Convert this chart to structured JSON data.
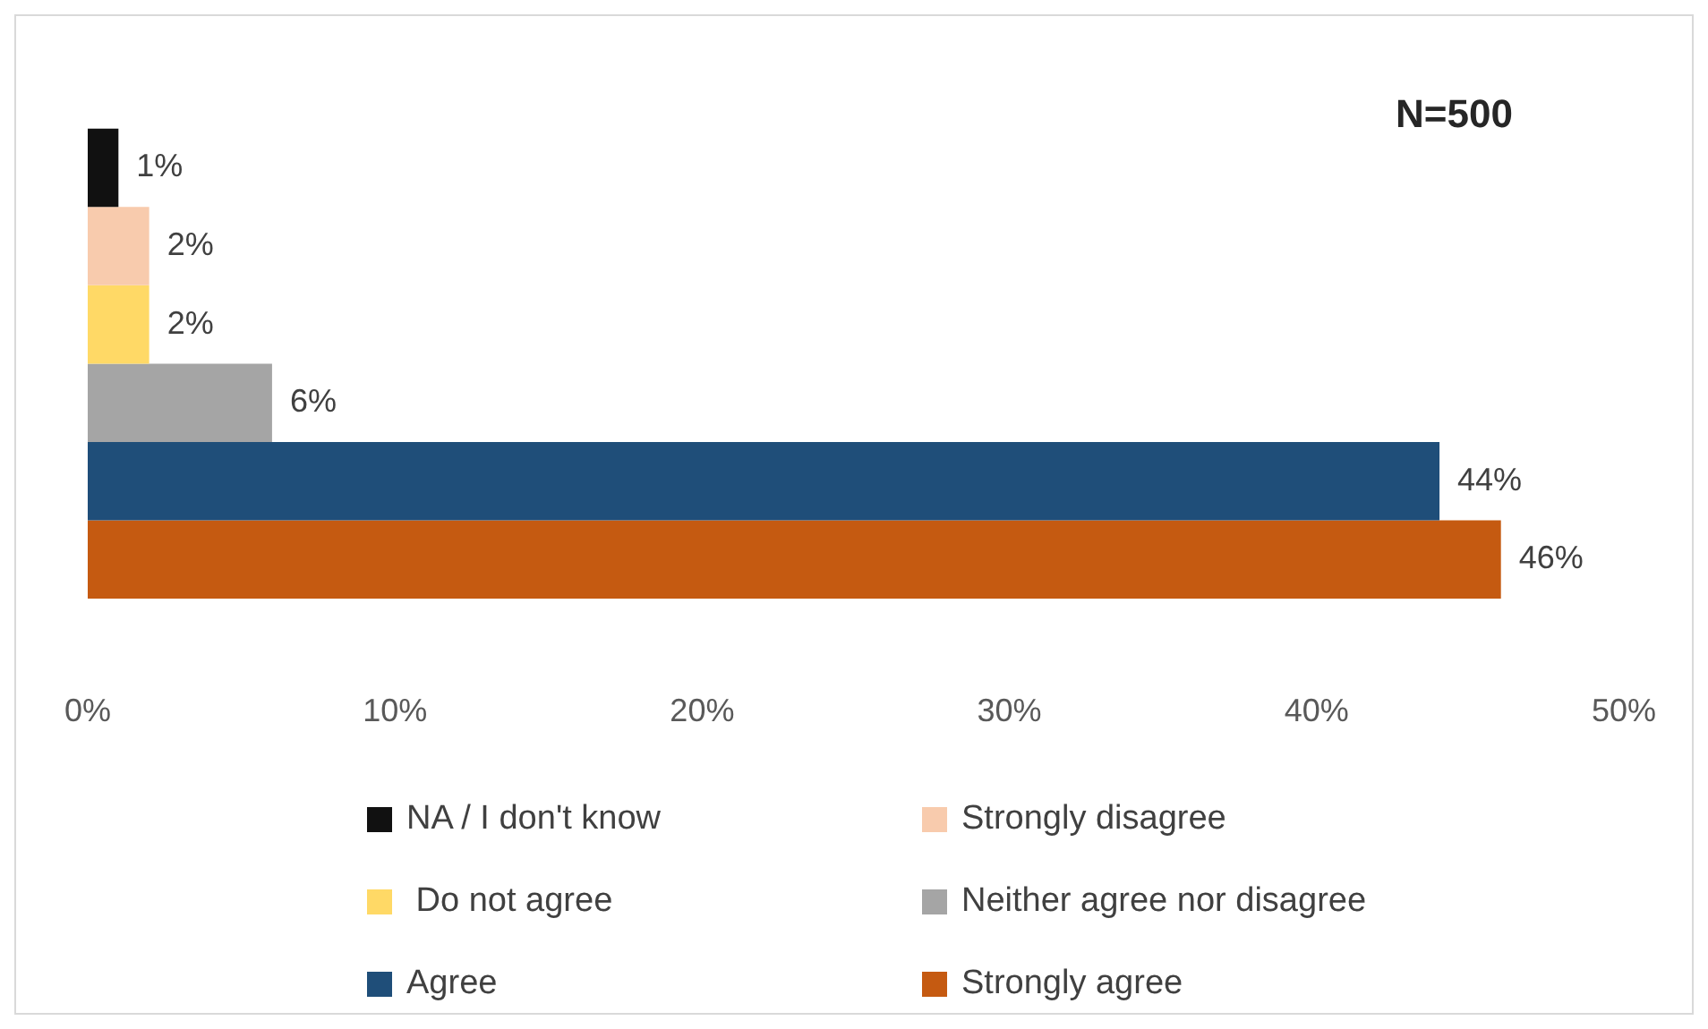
{
  "chart_data": {
    "type": "bar",
    "orientation": "horizontal",
    "annotations": [
      "N=500"
    ],
    "categories": [
      null
    ],
    "series": [
      {
        "name": "NA / I don't know",
        "color": "#111111",
        "values": [
          1
        ],
        "value_labels": [
          "1%"
        ]
      },
      {
        "name": "Strongly disagree",
        "color": "#f8cbad",
        "values": [
          2
        ],
        "value_labels": [
          "2%"
        ]
      },
      {
        "name": " Do not agree",
        "color": "#ffd966",
        "values": [
          2
        ],
        "value_labels": [
          "2%"
        ]
      },
      {
        "name": "Neither agree nor disagree",
        "color": "#a5a5a5",
        "values": [
          6
        ],
        "value_labels": [
          "6%"
        ]
      },
      {
        "name": "Agree",
        "color": "#1f4e79",
        "values": [
          44
        ],
        "value_labels": [
          "44%"
        ]
      },
      {
        "name": "Strongly agree",
        "color": "#c55a11",
        "values": [
          46
        ],
        "value_labels": [
          "46%"
        ]
      }
    ],
    "xlim": [
      0,
      50
    ],
    "xticks": [
      {
        "value": 0,
        "label": "0%"
      },
      {
        "value": 10,
        "label": "10%"
      },
      {
        "value": 20,
        "label": "20%"
      },
      {
        "value": 30,
        "label": "30%"
      },
      {
        "value": 40,
        "label": "40%"
      },
      {
        "value": 50,
        "label": "50%"
      }
    ],
    "grid": false,
    "legend": "bottom"
  }
}
